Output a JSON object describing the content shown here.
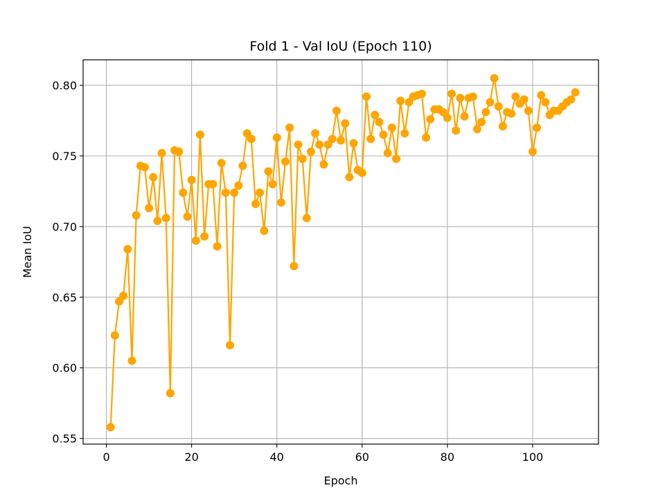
{
  "chart_data": {
    "type": "line",
    "title": "Fold 1 - Val IoU (Epoch 110)",
    "xlabel": "Epoch",
    "ylabel": "Mean IoU",
    "xlim": [
      -5.45,
      115.45
    ],
    "ylim": [
      0.546,
      0.818
    ],
    "xticks": [
      0,
      20,
      40,
      60,
      80,
      100
    ],
    "yticks": [
      0.55,
      0.6,
      0.65,
      0.7,
      0.75,
      0.8
    ],
    "ytick_labels": [
      "0.55",
      "0.60",
      "0.65",
      "0.70",
      "0.75",
      "0.80"
    ],
    "grid": true,
    "marker": "circle",
    "color": "#FFA500",
    "series": [
      {
        "x": [
          1,
          2,
          3,
          4,
          5,
          6,
          7,
          8,
          9,
          10,
          11,
          12,
          13,
          14,
          15,
          16,
          17,
          18,
          19,
          20,
          21,
          22,
          23,
          24,
          25,
          26,
          27,
          28,
          29,
          30,
          31,
          32,
          33,
          34,
          35,
          36,
          37,
          38,
          39,
          40,
          41,
          42,
          43,
          44,
          45,
          46,
          47,
          48,
          49,
          50,
          51,
          52,
          53,
          54,
          55,
          56,
          57,
          58,
          59,
          60,
          61,
          62,
          63,
          64,
          65,
          66,
          67,
          68,
          69,
          70,
          71,
          72,
          73,
          74,
          75,
          76,
          77,
          78,
          79,
          80,
          81,
          82,
          83,
          84,
          85,
          86,
          87,
          88,
          89,
          90,
          91,
          92,
          93,
          94,
          95,
          96,
          97,
          98,
          99,
          100,
          101,
          102,
          103,
          104,
          105,
          106,
          107,
          108,
          109,
          110
        ],
        "values": [
          0.558,
          0.623,
          0.647,
          0.651,
          0.684,
          0.605,
          0.708,
          0.743,
          0.742,
          0.713,
          0.735,
          0.704,
          0.752,
          0.706,
          0.582,
          0.754,
          0.753,
          0.724,
          0.707,
          0.733,
          0.69,
          0.765,
          0.693,
          0.73,
          0.73,
          0.686,
          0.745,
          0.724,
          0.616,
          0.724,
          0.729,
          0.743,
          0.766,
          0.762,
          0.716,
          0.724,
          0.697,
          0.739,
          0.73,
          0.763,
          0.717,
          0.746,
          0.77,
          0.672,
          0.758,
          0.748,
          0.706,
          0.753,
          0.766,
          0.758,
          0.744,
          0.758,
          0.762,
          0.782,
          0.761,
          0.773,
          0.735,
          0.759,
          0.74,
          0.738,
          0.792,
          0.762,
          0.779,
          0.774,
          0.765,
          0.752,
          0.77,
          0.748,
          0.789,
          0.766,
          0.788,
          0.792,
          0.793,
          0.794,
          0.763,
          0.776,
          0.783,
          0.783,
          0.781,
          0.777,
          0.794,
          0.768,
          0.791,
          0.778,
          0.791,
          0.792,
          0.769,
          0.774,
          0.781,
          0.788,
          0.805,
          0.785,
          0.771,
          0.781,
          0.78,
          0.792,
          0.787,
          0.79,
          0.782,
          0.753,
          0.77,
          0.793,
          0.788,
          0.779,
          0.782,
          0.782,
          0.785,
          0.788,
          0.79,
          0.795
        ]
      }
    ]
  }
}
